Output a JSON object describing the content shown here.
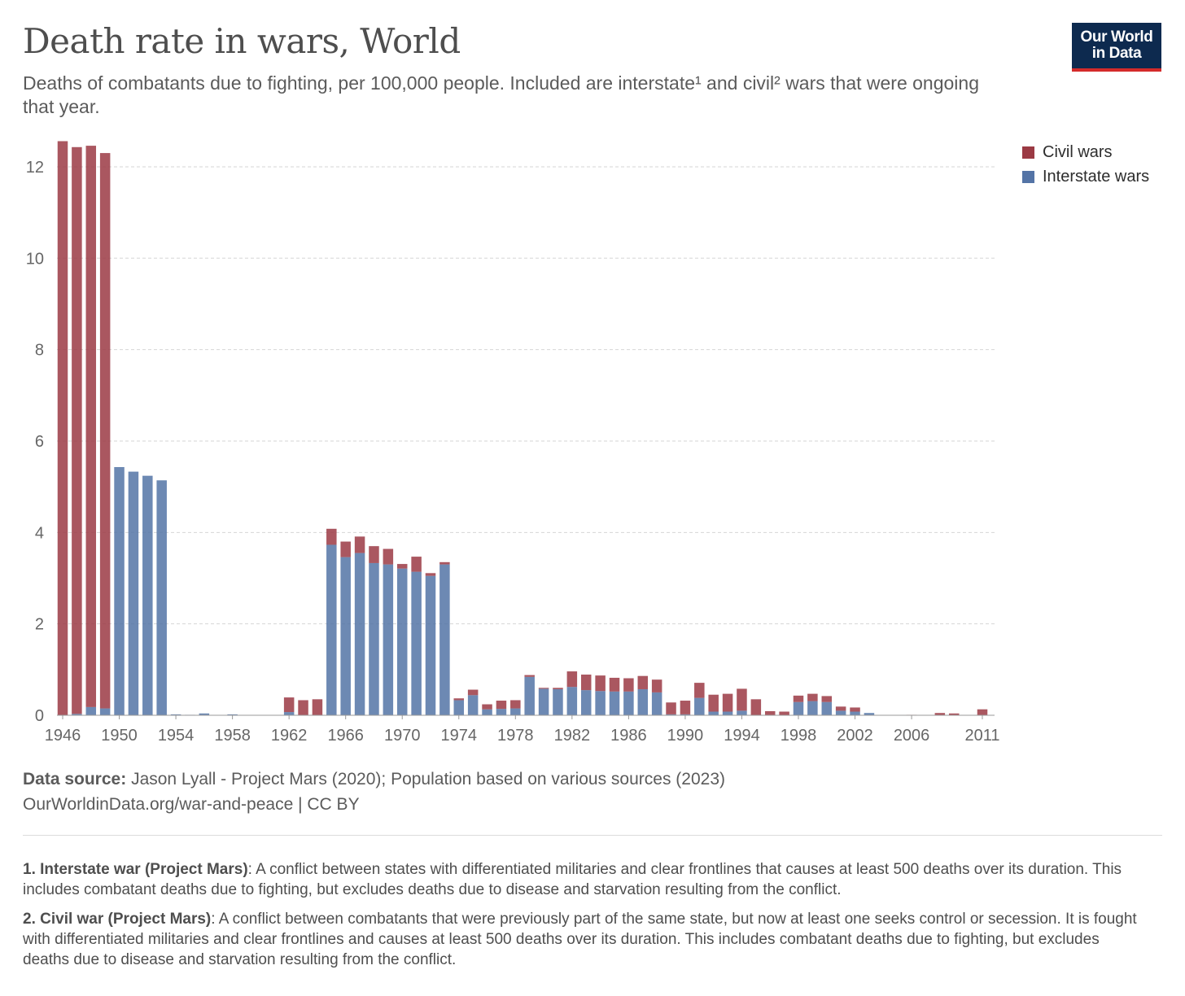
{
  "title": "Death rate in wars, World",
  "subtitle": "Deaths of combatants due to fighting, per 100,000 people. Included are interstate¹ and civil² wars that were ongoing that year.",
  "logo": {
    "line1": "Our World",
    "line2": "in Data"
  },
  "legend": [
    {
      "label": "Civil wars",
      "color": "#9b3a44"
    },
    {
      "label": "Interstate wars",
      "color": "#5474a6"
    }
  ],
  "source": {
    "label": "Data source:",
    "text": "Jason Lyall - Project Mars (2020); Population based on various sources (2023)",
    "link": "OurWorldinData.org/war-and-peace | CC BY"
  },
  "notes": [
    {
      "label": "1. Interstate war (Project Mars)",
      "text": ": A conflict between states with differentiated militaries and clear frontlines that causes at least 500 deaths over its duration. This includes combatant deaths due to fighting, but excludes deaths due to disease and starvation resulting from the conflict."
    },
    {
      "label": "2. Civil war (Project Mars)",
      "text": ": A conflict between combatants that were previously part of the same state, but now at least one seeks control or secession. It is fought with differentiated militaries and clear frontlines and causes at least 500 deaths over its duration. This includes combatant deaths due to fighting, but excludes deaths due to disease and starvation resulting from the conflict."
    }
  ],
  "chart_data": {
    "type": "bar",
    "stacked": true,
    "ylim": [
      0,
      12.8
    ],
    "yticks": [
      0,
      2,
      4,
      6,
      8,
      10,
      12
    ],
    "xtick_labels": [
      "1946",
      "1950",
      "1954",
      "1958",
      "1962",
      "1966",
      "1970",
      "1974",
      "1978",
      "1982",
      "1986",
      "1990",
      "1994",
      "1998",
      "2002",
      "2006",
      "2011"
    ],
    "grid": "horizontal dashed",
    "legend_position": "top-right",
    "categories": [
      1946,
      1947,
      1948,
      1949,
      1950,
      1951,
      1952,
      1953,
      1954,
      1955,
      1956,
      1957,
      1958,
      1959,
      1960,
      1961,
      1962,
      1963,
      1964,
      1965,
      1966,
      1967,
      1968,
      1969,
      1970,
      1971,
      1972,
      1973,
      1974,
      1975,
      1976,
      1977,
      1978,
      1979,
      1980,
      1981,
      1982,
      1983,
      1984,
      1985,
      1986,
      1987,
      1988,
      1989,
      1990,
      1991,
      1992,
      1993,
      1994,
      1995,
      1996,
      1997,
      1998,
      1999,
      2000,
      2001,
      2002,
      2003,
      2004,
      2005,
      2006,
      2007,
      2008,
      2009,
      2010,
      2011
    ],
    "series": [
      {
        "name": "Interstate wars",
        "color": "#5474a6",
        "values": [
          0,
          0.03,
          0.18,
          0.15,
          5.43,
          5.33,
          5.24,
          5.14,
          0.02,
          0.01,
          0.04,
          0,
          0.02,
          0,
          0,
          0,
          0.07,
          0,
          0,
          3.73,
          3.46,
          3.55,
          3.33,
          3.3,
          3.21,
          3.14,
          3.05,
          3.3,
          0.33,
          0.44,
          0.13,
          0.14,
          0.15,
          0.84,
          0.58,
          0.57,
          0.62,
          0.55,
          0.53,
          0.52,
          0.52,
          0.57,
          0.5,
          0.02,
          0.02,
          0.38,
          0.08,
          0.08,
          0.1,
          0,
          0,
          0,
          0.29,
          0.31,
          0.29,
          0.1,
          0.08,
          0.05,
          0,
          0,
          0,
          0,
          0,
          0,
          0,
          0
        ]
      },
      {
        "name": "Civil wars",
        "color": "#9b3a44",
        "values": [
          12.56,
          12.4,
          12.28,
          12.15,
          0,
          0,
          0,
          0,
          0,
          0,
          0,
          0,
          0,
          0,
          0,
          0,
          0.32,
          0.33,
          0.35,
          0.35,
          0.34,
          0.36,
          0.37,
          0.34,
          0.1,
          0.33,
          0.06,
          0.05,
          0.04,
          0.12,
          0.11,
          0.18,
          0.18,
          0.04,
          0.02,
          0.03,
          0.34,
          0.34,
          0.34,
          0.3,
          0.29,
          0.29,
          0.28,
          0.26,
          0.3,
          0.33,
          0.37,
          0.39,
          0.48,
          0.35,
          0.09,
          0.08,
          0.14,
          0.16,
          0.13,
          0.09,
          0.09,
          0,
          0,
          0,
          0.01,
          0,
          0.05,
          0.04,
          0,
          0.13
        ]
      }
    ]
  }
}
